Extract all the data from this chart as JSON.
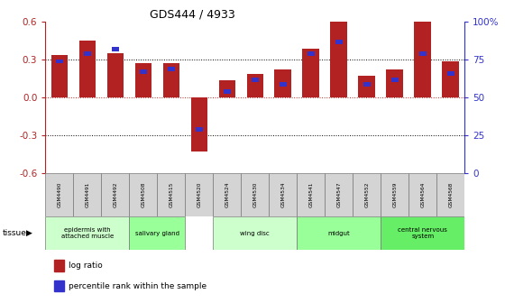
{
  "title": "GDS444 / 4933",
  "samples": [
    "GSM4490",
    "GSM4491",
    "GSM4492",
    "GSM4508",
    "GSM4515",
    "GSM4520",
    "GSM4524",
    "GSM4530",
    "GSM4534",
    "GSM4541",
    "GSM4547",
    "GSM4552",
    "GSM4559",
    "GSM4564",
    "GSM4568"
  ],
  "log_ratio": [
    0.33,
    0.45,
    0.35,
    0.27,
    0.27,
    -0.43,
    0.13,
    0.18,
    0.22,
    0.38,
    0.6,
    0.17,
    0.22,
    0.6,
    0.28
  ],
  "percentile": [
    75,
    80,
    83,
    68,
    70,
    30,
    55,
    63,
    60,
    80,
    88,
    60,
    63,
    80,
    67
  ],
  "ylim_left": [
    -0.6,
    0.6
  ],
  "ylim_right": [
    0,
    100
  ],
  "yticks_left": [
    -0.6,
    -0.3,
    0.0,
    0.3,
    0.6
  ],
  "yticks_right": [
    0,
    25,
    50,
    75,
    100
  ],
  "ytick_labels_right": [
    "0",
    "25",
    "50",
    "75",
    "100%"
  ],
  "bar_color": "#b22222",
  "percentile_color": "#3333cc",
  "tissue_groups": [
    {
      "label": "epidermis with\nattached muscle",
      "start": 0,
      "end": 3,
      "color": "#ccffcc"
    },
    {
      "label": "salivary gland",
      "start": 3,
      "end": 5,
      "color": "#99ff99"
    },
    {
      "label": "wing disc",
      "start": 6,
      "end": 9,
      "color": "#ccffcc"
    },
    {
      "label": "midgut",
      "start": 9,
      "end": 12,
      "color": "#99ff99"
    },
    {
      "label": "central nervous\nsystem",
      "start": 12,
      "end": 15,
      "color": "#66ee66"
    }
  ],
  "legend_label_red": "log ratio",
  "legend_label_blue": "percentile rank within the sample",
  "bar_width": 0.6,
  "blue_bar_width": 0.25,
  "blue_bar_height": 0.035
}
